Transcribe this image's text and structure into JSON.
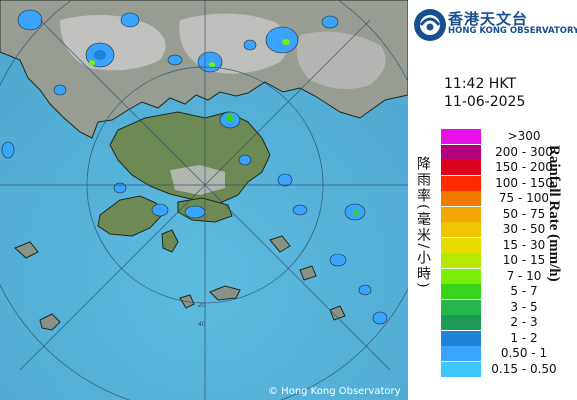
{
  "header": {
    "org_name_zh": "香港天文台",
    "org_name_en": "HONG KONG OBSERVATORY"
  },
  "timestamp": {
    "time": "11:42 HKT",
    "date": "11-06-2025"
  },
  "legend": {
    "title_zh": "降雨率(毫米/小時)",
    "title_en": "Rainfall Rate (mm/h)",
    "levels": [
      {
        "label": ">300",
        "color": "#e60fe6"
      },
      {
        "label": "200 - 300",
        "color": "#b4007a"
      },
      {
        "label": "150 - 200",
        "color": "#d9001c"
      },
      {
        "label": "100 - 150",
        "color": "#ff2a00"
      },
      {
        "label": "75 - 100",
        "color": "#f07a00"
      },
      {
        "label": "50 - 75",
        "color": "#f3a705"
      },
      {
        "label": "30 - 50",
        "color": "#f1c300"
      },
      {
        "label": "15 - 30",
        "color": "#e6dc00"
      },
      {
        "label": "10 - 15",
        "color": "#b7e900"
      },
      {
        "label": "7 - 10",
        "color": "#79ee06"
      },
      {
        "label": "5 - 7",
        "color": "#3ad31c"
      },
      {
        "label": "3 - 5",
        "color": "#26b84a"
      },
      {
        "label": "2 - 3",
        "color": "#1d9a58"
      },
      {
        "label": "1 - 2",
        "color": "#1f83d8"
      },
      {
        "label": "0.50 - 1",
        "color": "#3aa3ff"
      },
      {
        "label": "0.15 - 0.50",
        "color": "#40c6ff"
      }
    ]
  },
  "map": {
    "copyright": "© Hong Kong Observatory",
    "range_rings": [
      {
        "label": "20"
      },
      {
        "label": "40"
      }
    ],
    "colors": {
      "sea": "#5fb0d8",
      "land": "#8c9288",
      "urban": "#c9c9c9",
      "vegetation": "#6f8a55",
      "rings": "#2b4a66"
    }
  }
}
